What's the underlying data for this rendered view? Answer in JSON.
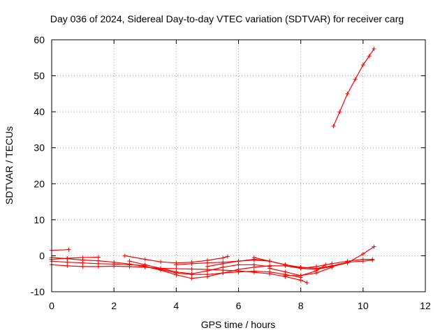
{
  "chart_data": {
    "type": "scatter",
    "title": "Day 036 of 2024, Sidereal Day-to-day VTEC variation (SDTVAR) for receiver carg",
    "xlabel": "GPS time / hours",
    "ylabel": "SDTVAR / TECUs",
    "xlim": [
      0,
      12
    ],
    "ylim": [
      -10,
      60
    ],
    "x_ticks": [
      "0",
      "2",
      "4",
      "6",
      "8",
      "10",
      "12"
    ],
    "y_ticks": [
      "-10",
      "0",
      "10",
      "20",
      "30",
      "40",
      "50",
      "60"
    ],
    "grid": true,
    "color": "#ff0000",
    "marker": "plus",
    "series": [
      {
        "x": [
          0.0,
          0.55
        ],
        "y": [
          1.5,
          1.7
        ]
      },
      {
        "x": [
          0.0,
          0.5,
          1.0,
          1.5,
          2.0,
          2.5,
          3.0
        ],
        "y": [
          -1.5,
          -1.8,
          -2.0,
          -2.2,
          -2.3,
          -2.5,
          -2.7
        ]
      },
      {
        "x": [
          0.0,
          0.5,
          1.0,
          1.5,
          2.0,
          2.5,
          3.0,
          3.5,
          4.0,
          4.5,
          5.0,
          5.5,
          6.0,
          6.5,
          7.0,
          7.5,
          8.0,
          8.2
        ],
        "y": [
          -2.5,
          -2.8,
          -3.0,
          -3.0,
          -2.9,
          -3.0,
          -3.2,
          -3.5,
          -3.6,
          -3.7,
          -3.8,
          -4.0,
          -4.2,
          -4.6,
          -5.0,
          -5.8,
          -6.8,
          -7.5
        ]
      },
      {
        "x": [
          0.0,
          0.5,
          1.0,
          1.5,
          2.0,
          2.5,
          3.0,
          3.5,
          4.0,
          4.5,
          5.0,
          5.5,
          6.0,
          6.5,
          7.0,
          7.5,
          8.0
        ],
        "y": [
          -0.5,
          -0.8,
          -1.2,
          -1.4,
          -1.8,
          -2.3,
          -3.0,
          -3.8,
          -4.8,
          -5.2,
          -5.2,
          -4.8,
          -4.5,
          -4.3,
          -4.5,
          -5.2,
          -6.0
        ]
      },
      {
        "x": [
          0.0,
          0.5,
          1.0,
          1.5
        ],
        "y": [
          -1.0,
          -0.7,
          -0.5,
          -0.4
        ]
      },
      {
        "x": [
          2.35,
          3.0,
          3.5,
          4.0,
          4.5,
          5.0,
          5.5,
          5.65
        ],
        "y": [
          0.0,
          -1.0,
          -1.7,
          -2.0,
          -1.8,
          -1.3,
          -0.6,
          -0.2
        ]
      },
      {
        "x": [
          2.5,
          3.0,
          3.5,
          4.0,
          4.5,
          5.0,
          5.5,
          6.0,
          6.5,
          7.0
        ],
        "y": [
          -1.5,
          -2.5,
          -3.5,
          -4.5,
          -5.0,
          -4.2,
          -3.2,
          -2.5,
          -2.5,
          -3.0
        ]
      },
      {
        "x": [
          3.0,
          3.5,
          4.0,
          4.5,
          5.0,
          5.5,
          6.0,
          6.5,
          7.0,
          7.5,
          8.0
        ],
        "y": [
          -3.0,
          -4.0,
          -5.3,
          -6.3,
          -5.8,
          -4.8,
          -3.8,
          -3.2,
          -2.8,
          -2.8,
          -3.5
        ]
      },
      {
        "x": [
          4.0,
          4.5,
          5.0,
          5.5,
          6.0,
          6.5,
          7.0,
          7.5,
          8.0,
          8.5,
          9.0,
          9.5,
          10.0,
          10.3
        ],
        "y": [
          -2.5,
          -2.2,
          -2.0,
          -1.8,
          -1.5,
          -1.2,
          -1.5,
          -2.5,
          -3.5,
          -3.0,
          -2.2,
          -1.5,
          -1.0,
          -1.0
        ]
      },
      {
        "x": [
          5.0,
          5.5,
          6.0,
          6.5,
          7.0,
          7.5,
          8.0,
          8.5,
          9.0,
          9.5,
          10.0,
          10.35
        ],
        "y": [
          -3.0,
          -2.2,
          -1.5,
          -1.0,
          -1.5,
          -2.5,
          -3.5,
          -3.8,
          -3.0,
          -2.0,
          0.5,
          2.5
        ]
      },
      {
        "x": [
          6.5,
          7.0,
          7.5,
          8.0,
          8.5,
          9.0,
          9.5,
          10.0,
          10.3
        ],
        "y": [
          -0.5,
          -1.5,
          -2.5,
          -3.2,
          -3.5,
          -2.8,
          -1.8,
          -1.5,
          -1.2
        ]
      },
      {
        "x": [
          7.5,
          8.0,
          8.5,
          8.8
        ],
        "y": [
          -5.5,
          -5.5,
          -4.2,
          -2.5
        ]
      },
      {
        "x": [
          7.0,
          7.5,
          8.0,
          8.5,
          9.0
        ],
        "y": [
          -3.5,
          -4.5,
          -5.5,
          -4.8,
          -3.2
        ]
      },
      {
        "x": [
          9.05,
          9.25,
          9.5,
          9.75,
          10.0,
          10.2,
          10.35
        ],
        "y": [
          36.0,
          40.0,
          45.0,
          49.0,
          53.0,
          55.5,
          57.5
        ]
      }
    ]
  }
}
